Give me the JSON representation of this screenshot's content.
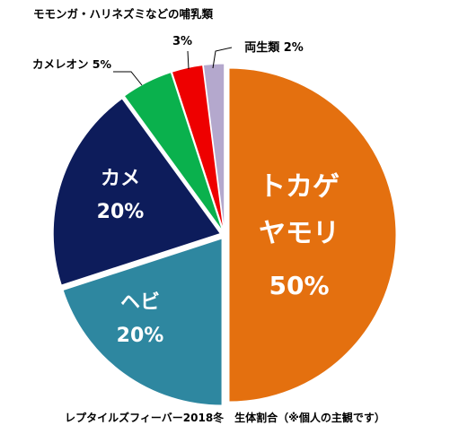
{
  "chart_data": {
    "type": "pie",
    "title": "",
    "caption": "レプタイルズフィーバー2018冬　生体割合（※個人の主観です）",
    "start": "12 o'clock",
    "direction": "clockwise",
    "slices": [
      {
        "label_lines": [
          "トカゲ",
          "ヤモリ"
        ],
        "value": 50,
        "value_text": "50%",
        "color": "#e4700f",
        "label_color": "#ffffff",
        "label_position": "inside"
      },
      {
        "label_lines": [
          "ヘビ"
        ],
        "value": 20,
        "value_text": "20%",
        "color": "#2e87a0",
        "label_color": "#ffffff",
        "label_position": "inside"
      },
      {
        "label_lines": [
          "カメ"
        ],
        "value": 20,
        "value_text": "20%",
        "color": "#0d1c5b",
        "label_color": "#ffffff",
        "label_position": "inside"
      },
      {
        "label_lines": [
          "カメレオン 5%"
        ],
        "value": 5,
        "value_text": "",
        "color": "#0ab14d",
        "label_color": "#000000",
        "label_position": "outside"
      },
      {
        "label_lines": [
          "モモンガ・ハリネズミなどの哺乳類"
        ],
        "value": 3,
        "value_text": "3%",
        "color": "#ee0000",
        "label_color": "#000000",
        "label_position": "outside"
      },
      {
        "label_lines": [
          "両生類 2%"
        ],
        "value": 2,
        "value_text": "",
        "color": "#b4a8cd",
        "label_color": "#000000",
        "label_position": "outside"
      }
    ]
  }
}
